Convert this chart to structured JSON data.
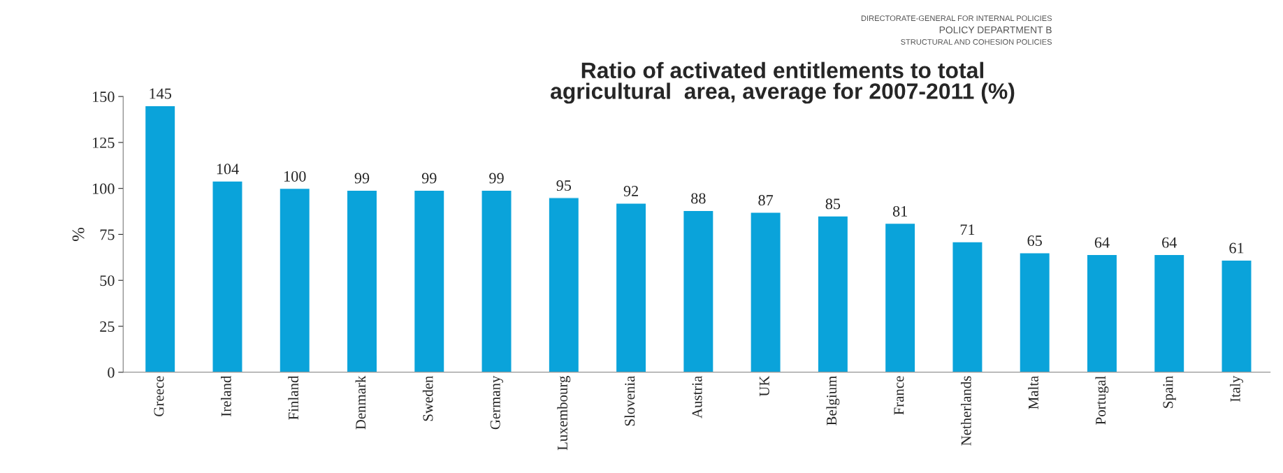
{
  "chart_data": {
    "type": "bar",
    "title": "Ratio of activated entitlements to total\nagricultural  area, average for 2007-2011 (%)",
    "ylabel": "%",
    "annotations": [
      "DIRECTORATE-GENERAL FOR INTERNAL POLICIES",
      "POLICY DEPARTMENT B",
      "STRUCTURAL AND COHESION POLICIES"
    ],
    "categories": [
      "Greece",
      "Ireland",
      "Finland",
      "Denmark",
      "Sweden",
      "Germany",
      "Luxembourg",
      "Slovenia",
      "Austria",
      "UK",
      "Belgium",
      "France",
      "Netherlands",
      "Malta",
      "Portugal",
      "Spain",
      "Italy"
    ],
    "values": [
      145,
      104,
      100,
      99,
      99,
      99,
      95,
      92,
      88,
      87,
      85,
      81,
      71,
      65,
      64,
      64,
      61
    ],
    "color": "#0aa3da",
    "ylim": [
      0,
      150
    ],
    "yticks": [
      0,
      25,
      50,
      75,
      100,
      125,
      150
    ],
    "data_labels": true,
    "grid": false,
    "legend": false
  }
}
